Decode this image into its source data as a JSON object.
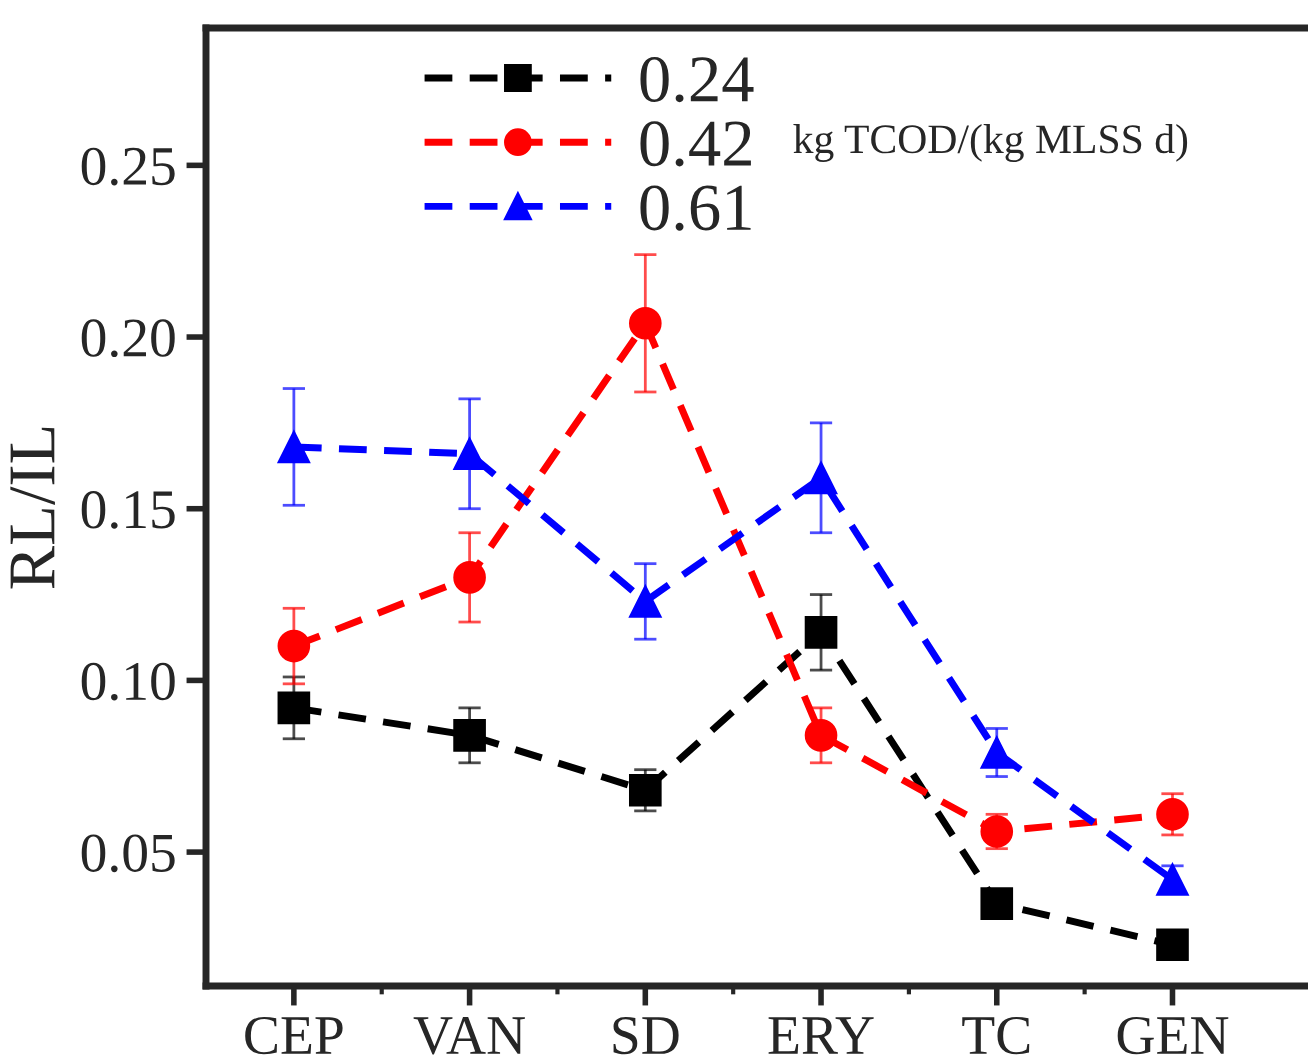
{
  "chart_data": {
    "type": "line",
    "ylabel": "RL/IL",
    "categories": [
      "CEP",
      "VAN",
      "SD",
      "ERY",
      "TC",
      "GEN"
    ],
    "series": [
      {
        "name": "0.24",
        "color": "#000000",
        "marker": "square",
        "values": [
          0.092,
          0.084,
          0.068,
          0.114,
          0.035,
          0.023
        ],
        "errors": [
          0.009,
          0.008,
          0.006,
          0.011,
          null,
          null
        ]
      },
      {
        "name": "0.42",
        "color": "#ff0000",
        "marker": "circle",
        "values": [
          0.11,
          0.13,
          0.204,
          0.084,
          0.056,
          0.061
        ],
        "errors": [
          0.011,
          0.013,
          0.02,
          0.008,
          0.005,
          0.006
        ]
      },
      {
        "name": "0.61",
        "color": "#0000ff",
        "marker": "triangle",
        "values": [
          0.168,
          0.166,
          0.123,
          0.159,
          0.079,
          0.042
        ],
        "errors": [
          0.017,
          0.016,
          0.011,
          0.016,
          0.007,
          0.004
        ]
      }
    ],
    "line_style": "dashed",
    "ylim": [
      0.011,
      0.29
    ],
    "yticks": [
      0.05,
      {
        "value": 0.1,
        "label": "0.10"
      },
      0.15,
      {
        "value": 0.2,
        "label": "0.20"
      },
      0.25
    ],
    "legend": "top",
    "annotations": [
      "kg TCOD/(kg MLSS d)"
    ],
    "grid": false
  }
}
